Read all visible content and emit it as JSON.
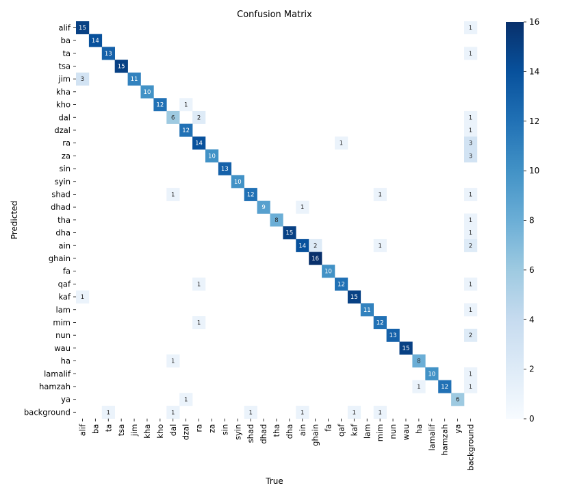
{
  "chart_data": {
    "type": "heatmap",
    "title": "Confusion Matrix",
    "xlabel": "True",
    "ylabel": "Predicted",
    "labels": [
      "alif",
      "ba",
      "ta",
      "tsa",
      "jim",
      "kha",
      "kho",
      "dal",
      "dzal",
      "ra",
      "za",
      "sin",
      "syin",
      "shad",
      "dhad",
      "tha",
      "dha",
      "ain",
      "ghain",
      "fa",
      "qaf",
      "kaf",
      "lam",
      "mim",
      "nun",
      "wau",
      "ha",
      "lamalif",
      "hamzah",
      "ya",
      "background"
    ],
    "colorbar": {
      "min": 0,
      "max": 16,
      "ticks": [
        0,
        2,
        4,
        6,
        8,
        10,
        12,
        14,
        16
      ]
    },
    "colormap": "Blues",
    "cells": [
      [
        0,
        0,
        15
      ],
      [
        0,
        30,
        1
      ],
      [
        1,
        1,
        14
      ],
      [
        2,
        2,
        13
      ],
      [
        2,
        30,
        1
      ],
      [
        3,
        3,
        15
      ],
      [
        4,
        0,
        3
      ],
      [
        4,
        4,
        11
      ],
      [
        5,
        5,
        10
      ],
      [
        6,
        6,
        12
      ],
      [
        6,
        8,
        1
      ],
      [
        7,
        7,
        6
      ],
      [
        7,
        9,
        2
      ],
      [
        7,
        30,
        1
      ],
      [
        8,
        8,
        12
      ],
      [
        8,
        30,
        1
      ],
      [
        9,
        9,
        14
      ],
      [
        9,
        20,
        1
      ],
      [
        9,
        30,
        3
      ],
      [
        10,
        10,
        10
      ],
      [
        10,
        30,
        3
      ],
      [
        11,
        11,
        13
      ],
      [
        12,
        12,
        10
      ],
      [
        13,
        7,
        1
      ],
      [
        13,
        13,
        12
      ],
      [
        13,
        23,
        1
      ],
      [
        13,
        30,
        1
      ],
      [
        14,
        14,
        9
      ],
      [
        14,
        17,
        1
      ],
      [
        15,
        15,
        8
      ],
      [
        15,
        30,
        1
      ],
      [
        16,
        16,
        15
      ],
      [
        16,
        30,
        1
      ],
      [
        17,
        17,
        14
      ],
      [
        17,
        18,
        2
      ],
      [
        17,
        23,
        1
      ],
      [
        17,
        30,
        2
      ],
      [
        18,
        18,
        16
      ],
      [
        19,
        19,
        10
      ],
      [
        20,
        9,
        1
      ],
      [
        20,
        20,
        12
      ],
      [
        20,
        30,
        1
      ],
      [
        21,
        0,
        1
      ],
      [
        21,
        21,
        15
      ],
      [
        22,
        22,
        11
      ],
      [
        22,
        30,
        1
      ],
      [
        23,
        9,
        1
      ],
      [
        23,
        23,
        12
      ],
      [
        24,
        24,
        13
      ],
      [
        24,
        30,
        2
      ],
      [
        25,
        25,
        15
      ],
      [
        26,
        7,
        1
      ],
      [
        26,
        26,
        8
      ],
      [
        27,
        27,
        10
      ],
      [
        27,
        30,
        1
      ],
      [
        28,
        26,
        1
      ],
      [
        28,
        28,
        12
      ],
      [
        28,
        30,
        1
      ],
      [
        29,
        8,
        1
      ],
      [
        29,
        29,
        6
      ],
      [
        30,
        2,
        1
      ],
      [
        30,
        7,
        1
      ],
      [
        30,
        13,
        1
      ],
      [
        30,
        17,
        1
      ],
      [
        30,
        21,
        1
      ],
      [
        30,
        23,
        1
      ]
    ]
  }
}
